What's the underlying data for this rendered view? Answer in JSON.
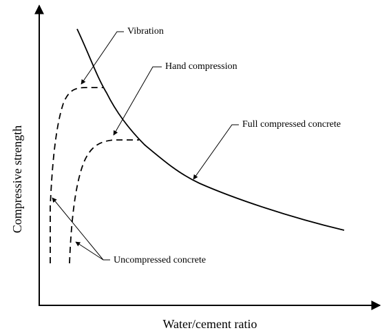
{
  "x_axis_label": "Water/cement ratio",
  "y_axis_label": "Compressive strength",
  "annotations": {
    "vibration": "Vibration",
    "hand": "Hand compression",
    "full": "Full compressed concrete",
    "uncompressed": "Uncompressed concrete"
  }
}
